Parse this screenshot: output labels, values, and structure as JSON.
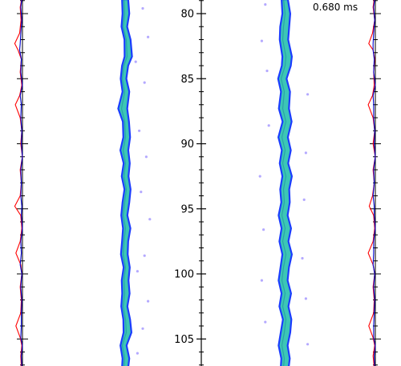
{
  "chart_data": {
    "type": "line",
    "time_label": "0.680 ms",
    "y_axis": {
      "ticks": [
        80,
        85,
        90,
        95,
        100,
        105
      ],
      "tick_labels": [
        "80",
        "85",
        "90",
        "95",
        "100",
        "105"
      ],
      "range": [
        78.9,
        107.2
      ],
      "inverted": true
    },
    "grid": false,
    "legend": "none",
    "colors": {
      "trace_red": "#ff0000",
      "trace_blue": "#0000cc",
      "jet_core": "#3cc6b6",
      "jet_edge": "#1a3cff",
      "spray": "#9b8cff",
      "axis": "#000000"
    },
    "left_profile": {
      "series": [
        {
          "color": "red",
          "y": [
            78.9,
            79.5,
            80.5,
            81.5,
            82.3,
            82.8,
            83.5,
            84.5,
            85.5,
            86.3,
            87.0,
            88.0,
            89.0,
            90.0,
            91.0,
            92.0,
            93.0,
            94.0,
            94.8,
            95.5,
            96.5,
            97.5,
            98.4,
            99.3,
            100.0,
            101.0,
            102.0,
            103.0,
            104.0,
            104.9,
            105.5,
            106.3,
            107.2
          ],
          "x": [
            0.35,
            0.3,
            0.33,
            0.28,
            0.1,
            0.22,
            0.34,
            0.3,
            0.36,
            0.28,
            0.12,
            0.3,
            0.36,
            0.32,
            0.38,
            0.3,
            0.34,
            0.3,
            0.1,
            0.32,
            0.36,
            0.3,
            0.14,
            0.32,
            0.36,
            0.3,
            0.34,
            0.32,
            0.14,
            0.3,
            0.36,
            0.32,
            0.34
          ]
        },
        {
          "color": "blue",
          "y": [
            78.9,
            79.5,
            80.5,
            81.5,
            82.3,
            82.8,
            83.5,
            84.5,
            85.5,
            86.3,
            87.0,
            88.0,
            89.0,
            90.0,
            91.0,
            92.0,
            93.0,
            94.0,
            94.8,
            95.5,
            96.5,
            97.5,
            98.4,
            99.3,
            100.0,
            101.0,
            102.0,
            103.0,
            104.0,
            104.9,
            105.5,
            106.3,
            107.2
          ],
          "x": [
            0.36,
            0.32,
            0.36,
            0.32,
            0.3,
            0.28,
            0.34,
            0.32,
            0.38,
            0.3,
            0.34,
            0.32,
            0.36,
            0.34,
            0.38,
            0.32,
            0.34,
            0.32,
            0.36,
            0.34,
            0.38,
            0.32,
            0.34,
            0.3,
            0.36,
            0.32,
            0.36,
            0.34,
            0.34,
            0.32,
            0.38,
            0.34,
            0.36
          ]
        }
      ]
    },
    "right_profile": {
      "series": [
        {
          "color": "red",
          "y": [
            78.9,
            79.5,
            80.5,
            81.5,
            82.3,
            82.8,
            83.5,
            84.5,
            85.5,
            86.3,
            87.0,
            88.0,
            89.0,
            90.0,
            91.0,
            92.0,
            93.0,
            94.0,
            94.8,
            95.5,
            96.5,
            97.5,
            98.4,
            99.3,
            100.0,
            101.0,
            102.0,
            103.0,
            104.0,
            104.9,
            105.5,
            106.3,
            107.2
          ],
          "x": [
            0.34,
            0.3,
            0.36,
            0.28,
            0.14,
            0.3,
            0.36,
            0.32,
            0.34,
            0.28,
            0.12,
            0.3,
            0.36,
            0.3,
            0.38,
            0.3,
            0.34,
            0.28,
            0.16,
            0.32,
            0.36,
            0.3,
            0.12,
            0.3,
            0.36,
            0.3,
            0.34,
            0.32,
            0.14,
            0.3,
            0.36,
            0.3,
            0.34
          ]
        },
        {
          "color": "blue",
          "y": [
            78.9,
            79.5,
            80.5,
            81.5,
            82.3,
            82.8,
            83.5,
            84.5,
            85.5,
            86.3,
            87.0,
            88.0,
            89.0,
            90.0,
            91.0,
            92.0,
            93.0,
            94.0,
            94.8,
            95.5,
            96.5,
            97.5,
            98.4,
            99.3,
            100.0,
            101.0,
            102.0,
            103.0,
            104.0,
            104.9,
            105.5,
            106.3,
            107.2
          ],
          "x": [
            0.36,
            0.32,
            0.36,
            0.32,
            0.3,
            0.3,
            0.34,
            0.32,
            0.38,
            0.3,
            0.32,
            0.32,
            0.36,
            0.34,
            0.38,
            0.32,
            0.34,
            0.3,
            0.34,
            0.34,
            0.38,
            0.32,
            0.32,
            0.3,
            0.36,
            0.32,
            0.36,
            0.34,
            0.32,
            0.32,
            0.38,
            0.34,
            0.36
          ]
        }
      ]
    },
    "jet_centerline": {
      "y": [
        78.9,
        80.0,
        81.0,
        82.0,
        83.3,
        84.0,
        85.0,
        86.0,
        87.3,
        88.3,
        89.5,
        90.5,
        91.5,
        92.5,
        93.5,
        94.5,
        95.5,
        96.5,
        97.5,
        98.5,
        99.5,
        100.5,
        101.5,
        102.5,
        103.5,
        104.5,
        105.5,
        106.5,
        107.2
      ],
      "left_jet_offset": [
        0.0,
        0.1,
        -0.1,
        0.3,
        0.4,
        0.0,
        -0.2,
        0.1,
        -0.3,
        0.1,
        0.2,
        -0.1,
        0.2,
        0.0,
        0.3,
        0.1,
        -0.1,
        0.2,
        0.0,
        -0.1,
        0.2,
        0.0,
        0.1,
        -0.1,
        0.2,
        0.3,
        -0.2,
        0.1,
        0.0
      ],
      "right_jet_offset": [
        0.0,
        0.2,
        0.0,
        -0.1,
        0.3,
        0.2,
        -0.3,
        0.1,
        -0.1,
        0.3,
        -0.2,
        0.2,
        -0.1,
        0.3,
        0.0,
        0.1,
        -0.2,
        0.2,
        -0.1,
        0.3,
        0.0,
        -0.2,
        0.2,
        -0.1,
        0.3,
        0.1,
        -0.2,
        0.1,
        0.0
      ],
      "left_jet_width": [
        0.55,
        0.6,
        0.5,
        0.55,
        0.65,
        0.55,
        0.5,
        0.6,
        0.8,
        0.55,
        0.6,
        0.7,
        0.55,
        0.6,
        0.55,
        0.6,
        0.55,
        0.65,
        0.55,
        0.6,
        0.55,
        0.6,
        0.65,
        0.55,
        0.6,
        0.7,
        0.55,
        0.6,
        0.55
      ],
      "right_jet_width": [
        0.55,
        0.7,
        0.8,
        0.75,
        0.85,
        0.8,
        0.75,
        0.8,
        0.9,
        0.8,
        0.85,
        0.8,
        0.75,
        0.85,
        0.8,
        0.75,
        0.8,
        0.85,
        0.8,
        0.85,
        0.75,
        0.8,
        0.85,
        0.8,
        0.75,
        0.85,
        0.8,
        0.75,
        0.7
      ]
    },
    "droplets_left": [
      {
        "y": 79.6,
        "dx": 1.0
      },
      {
        "y": 81.8,
        "dx": 1.3
      },
      {
        "y": 83.7,
        "dx": 0.6
      },
      {
        "y": 85.3,
        "dx": 1.1
      },
      {
        "y": 89.0,
        "dx": 0.8
      },
      {
        "y": 91.0,
        "dx": 1.2
      },
      {
        "y": 93.7,
        "dx": 0.9
      },
      {
        "y": 95.8,
        "dx": 1.4
      },
      {
        "y": 98.6,
        "dx": 1.1
      },
      {
        "y": 99.8,
        "dx": 0.7
      },
      {
        "y": 102.1,
        "dx": 1.3
      },
      {
        "y": 104.2,
        "dx": 1.0
      },
      {
        "y": 106.1,
        "dx": 0.7
      }
    ],
    "droplets_right": [
      {
        "y": 79.3,
        "dx": -1.1
      },
      {
        "y": 82.1,
        "dx": -1.3
      },
      {
        "y": 84.4,
        "dx": -1.0
      },
      {
        "y": 86.2,
        "dx": 1.3
      },
      {
        "y": 88.6,
        "dx": -0.9
      },
      {
        "y": 90.7,
        "dx": 1.2
      },
      {
        "y": 92.5,
        "dx": -1.4
      },
      {
        "y": 94.3,
        "dx": 1.1
      },
      {
        "y": 96.6,
        "dx": -1.2
      },
      {
        "y": 98.8,
        "dx": 1.0
      },
      {
        "y": 100.5,
        "dx": -1.3
      },
      {
        "y": 101.9,
        "dx": 1.2
      },
      {
        "y": 103.7,
        "dx": -1.1
      },
      {
        "y": 105.4,
        "dx": 1.3
      }
    ]
  }
}
